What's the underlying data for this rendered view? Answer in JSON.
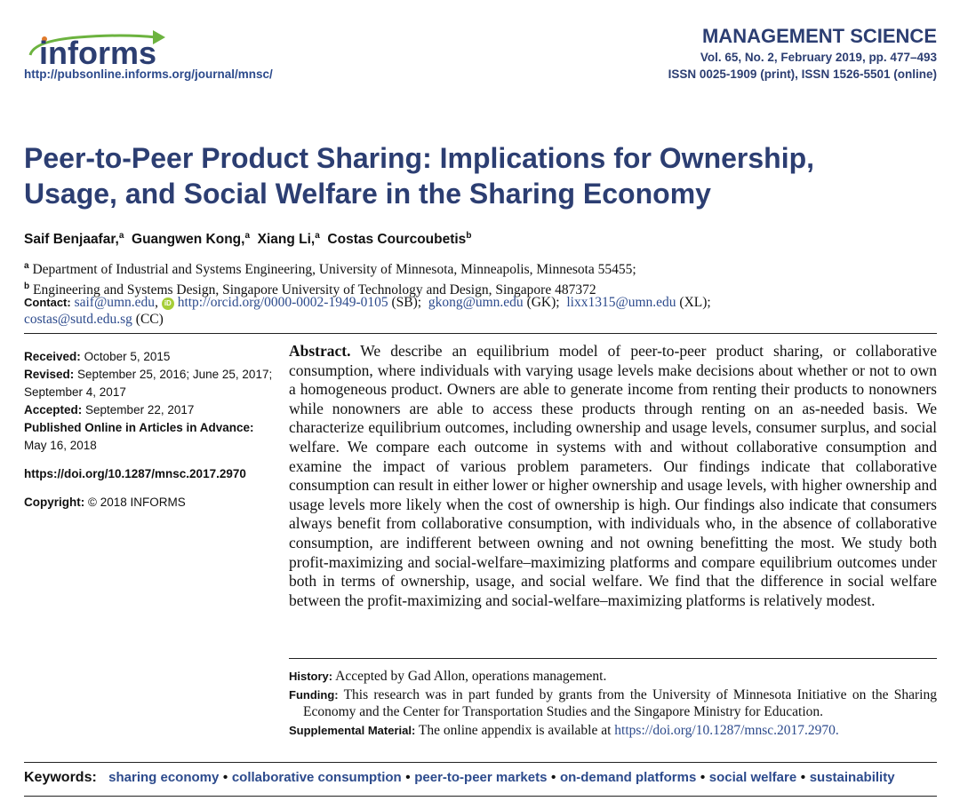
{
  "header": {
    "logo_text": "informs",
    "url": "http://pubsonline.informs.org/journal/mnsc/",
    "journal": "MANAGEMENT SCIENCE",
    "volume": "Vol. 65, No. 2, February 2019, pp. 477–493",
    "issn": "ISSN 0025-1909 (print), ISSN 1526-5501 (online)",
    "colors": {
      "navy": "#2c3e72",
      "green": "#6cb33f"
    }
  },
  "title": {
    "line1": "Peer-to-Peer Product Sharing: Implications for Ownership,",
    "line2": "Usage, and Social Welfare in the Sharing Economy"
  },
  "authors": [
    {
      "name": "Saif Benjaafar,",
      "aff": "a"
    },
    {
      "name": "Guangwen Kong,",
      "aff": "a"
    },
    {
      "name": "Xiang Li,",
      "aff": "a"
    },
    {
      "name": "Costas Courcoubetis",
      "aff": "b"
    }
  ],
  "affiliations": [
    {
      "mark": "a",
      "text": "Department of Industrial and Systems Engineering, University of Minnesota, Minneapolis, Minnesota 55455;"
    },
    {
      "mark": "b",
      "text": "Engineering and Systems Design, Singapore University of Technology and Design, Singapore 487372"
    }
  ],
  "contact": {
    "label": "Contact:",
    "email1": "saif@umn.edu",
    "orcid_icon": "orcid-icon",
    "orcid": "http://orcid.org/0000-0002-1949-0105",
    "orcid_tag": "(SB);",
    "email2": "gkong@umn.edu",
    "tag2": "(GK);",
    "email3": "lixx1315@umn.edu",
    "tag3": "(XL);",
    "email4": "costas@sutd.edu.sg",
    "tag4": "(CC)"
  },
  "dates": {
    "received_label": "Received:",
    "received": "October 5, 2015",
    "revised_label": "Revised:",
    "revised": "September 25, 2016; June 25, 2017; September 4, 2017",
    "accepted_label": "Accepted:",
    "accepted": "September 22, 2017",
    "published_label": "Published Online in Articles in Advance:",
    "published": "May 16, 2018",
    "doi": "https://doi.org/10.1287/mnsc.2017.2970",
    "copyright_label": "Copyright:",
    "copyright": "© 2018 INFORMS"
  },
  "abstract": {
    "label": "Abstract.",
    "text": "We describe an equilibrium model of peer-to-peer product sharing, or collaborative consumption, where individuals with varying usage levels make decisions about whether or not to own a homogeneous product. Owners are able to generate income from renting their products to nonowners while nonowners are able to access these products through renting on an as-needed basis. We characterize equilibrium outcomes, including ownership and usage levels, consumer surplus, and social welfare. We compare each outcome in systems with and without collaborative consumption and examine the impact of various problem parameters. Our findings indicate that collaborative consumption can result in either lower or higher ownership and usage levels, with higher ownership and usage levels more likely when the cost of ownership is high. Our findings also indicate that consumers always benefit from collaborative consumption, with individuals who, in the absence of collaborative consumption, are indifferent between owning and not owning benefitting the most. We study both profit-maximizing and social-welfare–maximizing platforms and compare equilibrium outcomes under both in terms of ownership, usage, and social welfare. We find that the difference in social welfare between the profit-maximizing and social-welfare–maximizing platforms is relatively modest."
  },
  "notes": {
    "history_label": "History:",
    "history": "Accepted by Gad Allon, operations management.",
    "funding_label": "Funding:",
    "funding": "This research was in part funded by grants from the University of Minnesota Initiative on the Sharing Economy and the Center for Transportation Studies and the Singapore Ministry for Education.",
    "supp_label": "Supplemental Material:",
    "supp": "The online appendix is available at",
    "supp_link": "https://doi.org/10.1287/mnsc.2017.2970."
  },
  "keywords": {
    "label": "Keywords:",
    "items": [
      "sharing economy",
      "collaborative consumption",
      "peer-to-peer markets",
      "on-demand platforms",
      "social welfare",
      "sustainability"
    ]
  }
}
